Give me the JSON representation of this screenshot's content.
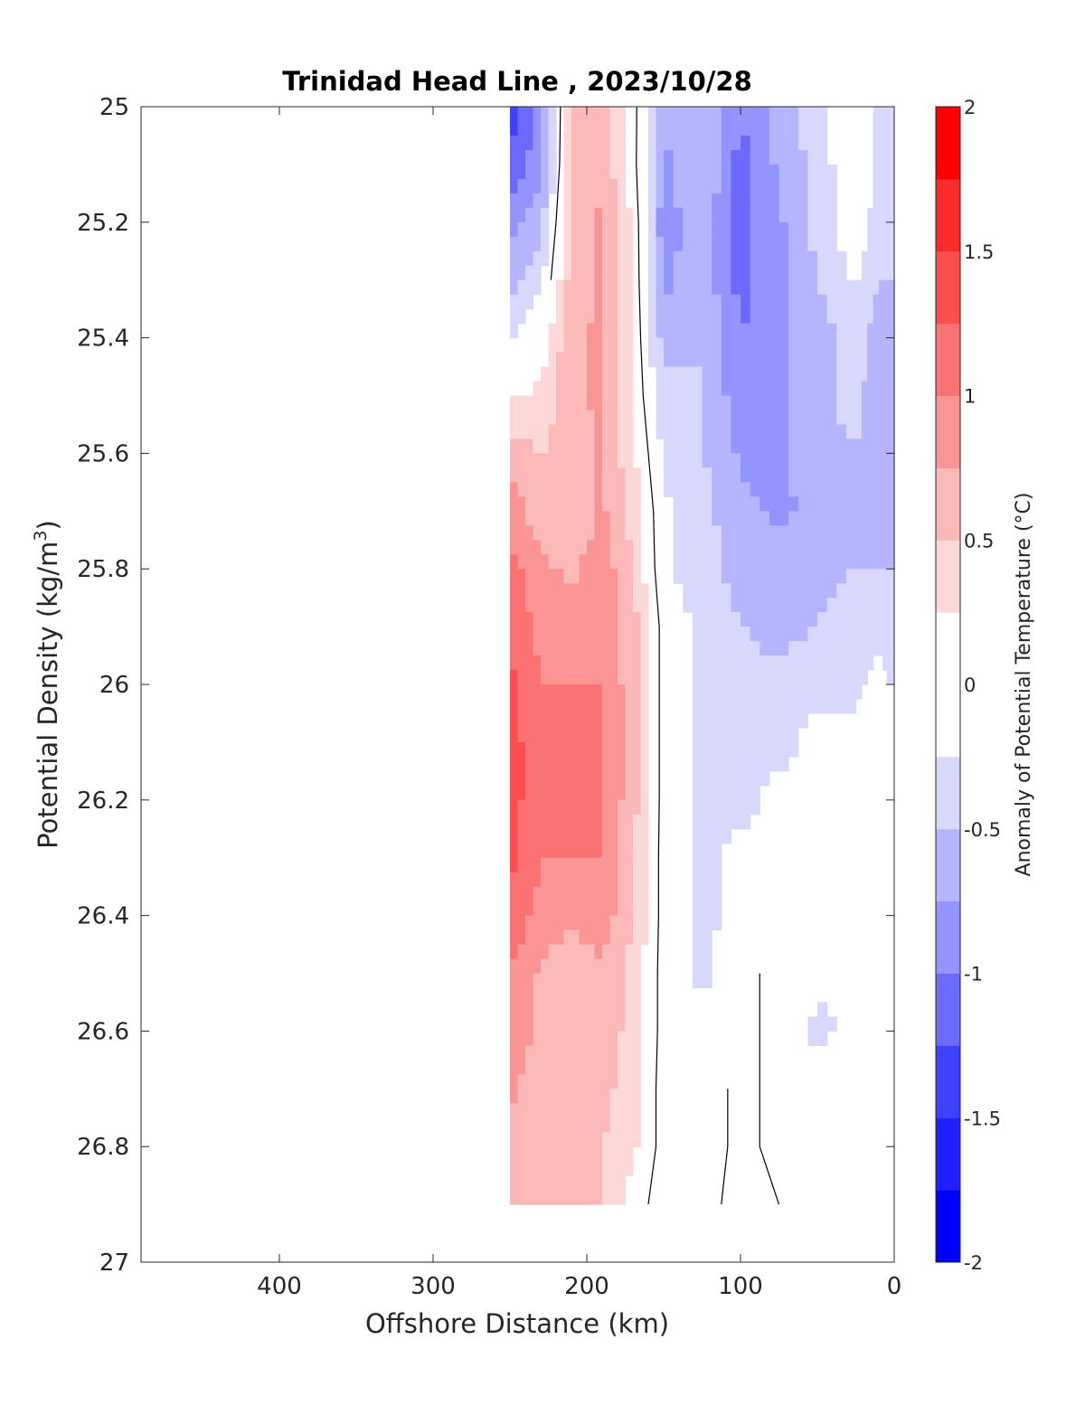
{
  "chart_data": {
    "type": "heatmap",
    "title": "Trinidad Head Line , 2023/10/28",
    "xlabel": "Offshore Distance (km)",
    "ylabel_main": "Potential Density (kg/m",
    "ylabel_sup": "3",
    "ylabel_close": ")",
    "colorbar_label": "Anomaly of Potential Temperature (°C)",
    "xlim": [
      0,
      490
    ],
    "x_reversed": true,
    "ylim": [
      25,
      27
    ],
    "y_reversed": true,
    "x_ticks": [
      400,
      300,
      200,
      100,
      0
    ],
    "x_tick_labels": [
      "400",
      "300",
      "200",
      "100",
      "0"
    ],
    "y_ticks": [
      25,
      25.2,
      25.4,
      25.6,
      25.8,
      26,
      26.2,
      26.4,
      26.6,
      26.8,
      27
    ],
    "y_tick_labels": [
      "25",
      "25.2",
      "25.4",
      "25.6",
      "25.8",
      "26",
      "26.2",
      "26.4",
      "26.6",
      "26.8",
      "27"
    ],
    "colorbar": {
      "range": [
        -2,
        2
      ],
      "ticks": [
        -2,
        -1.5,
        -1,
        -0.5,
        0,
        0.5,
        1,
        1.5,
        2
      ],
      "tick_labels": [
        "-2",
        "-1.5",
        "-1",
        "-0.5",
        "0",
        "0.5",
        "1",
        "1.5",
        "2"
      ],
      "levels": [
        {
          "from": -2.0,
          "to": -1.75,
          "color": "#0000ff"
        },
        {
          "from": -1.75,
          "to": -1.5,
          "color": "#2020ff"
        },
        {
          "from": -1.5,
          "to": -1.25,
          "color": "#4040ff"
        },
        {
          "from": -1.25,
          "to": -1.0,
          "color": "#6a6aff"
        },
        {
          "from": -1.0,
          "to": -0.75,
          "color": "#9494ff"
        },
        {
          "from": -0.75,
          "to": -0.5,
          "color": "#b4b4ff"
        },
        {
          "from": -0.5,
          "to": -0.25,
          "color": "#d8d8fc"
        },
        {
          "from": -0.25,
          "to": 0.25,
          "color": "#ffffff"
        },
        {
          "from": 0.25,
          "to": 0.5,
          "color": "#fcd8d8"
        },
        {
          "from": 0.5,
          "to": 0.75,
          "color": "#fbb8b8"
        },
        {
          "from": 0.75,
          "to": 1.0,
          "color": "#fb9494"
        },
        {
          "from": 1.0,
          "to": 1.25,
          "color": "#fb7272"
        },
        {
          "from": 1.25,
          "to": 1.5,
          "color": "#fc4e4e"
        },
        {
          "from": 1.5,
          "to": 1.75,
          "color": "#fc2c2c"
        },
        {
          "from": 1.75,
          "to": 2.0,
          "color": "#ff0000"
        }
      ]
    },
    "stations_x_km": [
      250,
      230,
      210,
      190,
      170,
      150,
      125,
      100,
      75,
      50,
      25,
      10
    ],
    "density_levels": [
      25.0,
      25.1,
      25.2,
      25.3,
      25.4,
      25.5,
      25.6,
      25.7,
      25.8,
      25.9,
      26.0,
      26.1,
      26.2,
      26.3,
      26.4,
      26.5,
      26.6,
      26.7,
      26.8,
      26.9
    ],
    "anomaly_grid": [
      [
        -1.4,
        -0.9,
        0.5,
        0.7,
        0.1,
        -0.7,
        -0.5,
        -1.0,
        -0.7,
        -0.3,
        0.0,
        -0.3
      ],
      [
        -1.2,
        -0.8,
        0.5,
        0.7,
        0.1,
        -0.8,
        -0.5,
        -1.1,
        -0.7,
        -0.4,
        0.0,
        -0.3
      ],
      [
        -0.9,
        -0.6,
        0.6,
        0.8,
        0.2,
        -0.9,
        -0.6,
        -1.1,
        -0.8,
        -0.4,
        -0.1,
        -0.4
      ],
      [
        -0.6,
        -0.3,
        0.6,
        0.8,
        0.2,
        -0.8,
        -0.6,
        -1.1,
        -0.8,
        -0.5,
        -0.2,
        -0.5
      ],
      [
        -0.3,
        0.1,
        0.7,
        0.8,
        0.2,
        -0.6,
        -0.5,
        -1.0,
        -0.8,
        -0.6,
        -0.4,
        -0.6
      ],
      [
        0.2,
        0.3,
        0.7,
        0.8,
        0.2,
        -0.4,
        -0.5,
        -0.9,
        -0.8,
        -0.6,
        -0.4,
        -0.7
      ],
      [
        0.6,
        0.5,
        0.6,
        0.8,
        0.3,
        -0.3,
        -0.5,
        -0.8,
        -0.8,
        -0.6,
        -0.5,
        -0.7
      ],
      [
        0.9,
        0.6,
        0.5,
        0.8,
        0.4,
        -0.2,
        -0.4,
        -0.7,
        -0.8,
        -0.7,
        -0.6,
        -0.7
      ],
      [
        1.1,
        0.8,
        0.7,
        0.9,
        0.5,
        -0.2,
        -0.4,
        -0.6,
        -0.7,
        -0.6,
        -0.5,
        -0.5
      ],
      [
        1.2,
        0.9,
        0.9,
        0.9,
        0.6,
        -0.1,
        -0.3,
        -0.5,
        -0.6,
        -0.5,
        -0.4,
        -0.3
      ],
      [
        1.3,
        1.0,
        1.0,
        1.0,
        0.6,
        -0.1,
        -0.3,
        -0.4,
        -0.4,
        -0.3,
        -0.3,
        -0.2
      ],
      [
        1.4,
        1.0,
        1.1,
        1.0,
        0.6,
        -0.1,
        -0.3,
        -0.3,
        -0.3,
        -0.2,
        -0.2,
        -0.1
      ],
      [
        1.4,
        1.0,
        1.0,
        1.0,
        0.6,
        -0.1,
        -0.3,
        -0.3,
        -0.2,
        -0.2,
        -0.2,
        -0.1
      ],
      [
        1.3,
        1.0,
        1.0,
        1.0,
        0.5,
        -0.1,
        -0.3,
        -0.2,
        -0.2,
        -0.2,
        -0.2,
        -0.1
      ],
      [
        1.2,
        0.9,
        0.8,
        0.9,
        0.5,
        -0.1,
        -0.3,
        -0.2,
        -0.1,
        -0.2,
        -0.2,
        -0.1
      ],
      [
        1.0,
        0.7,
        0.6,
        0.7,
        0.4,
        -0.1,
        -0.3,
        -0.1,
        0.1,
        -0.2,
        -0.2,
        -0.1
      ],
      [
        0.9,
        0.7,
        0.7,
        0.7,
        0.4,
        -0.1,
        -0.2,
        -0.1,
        -0.1,
        -0.3,
        -0.2,
        -0.1
      ],
      [
        0.8,
        0.6,
        0.6,
        0.6,
        0.3,
        -0.1,
        -0.2,
        0.1,
        -0.1,
        -0.2,
        -0.1,
        -0.1
      ],
      [
        0.7,
        0.5,
        0.5,
        0.5,
        0.3,
        -0.1,
        -0.2,
        0.1,
        -0.1,
        -0.1,
        -0.1,
        -0.1
      ],
      [
        null,
        null,
        null,
        null,
        0.1,
        -0.1,
        -0.1,
        0.1,
        0.0,
        -0.1,
        -0.1,
        -0.1
      ]
    ]
  }
}
